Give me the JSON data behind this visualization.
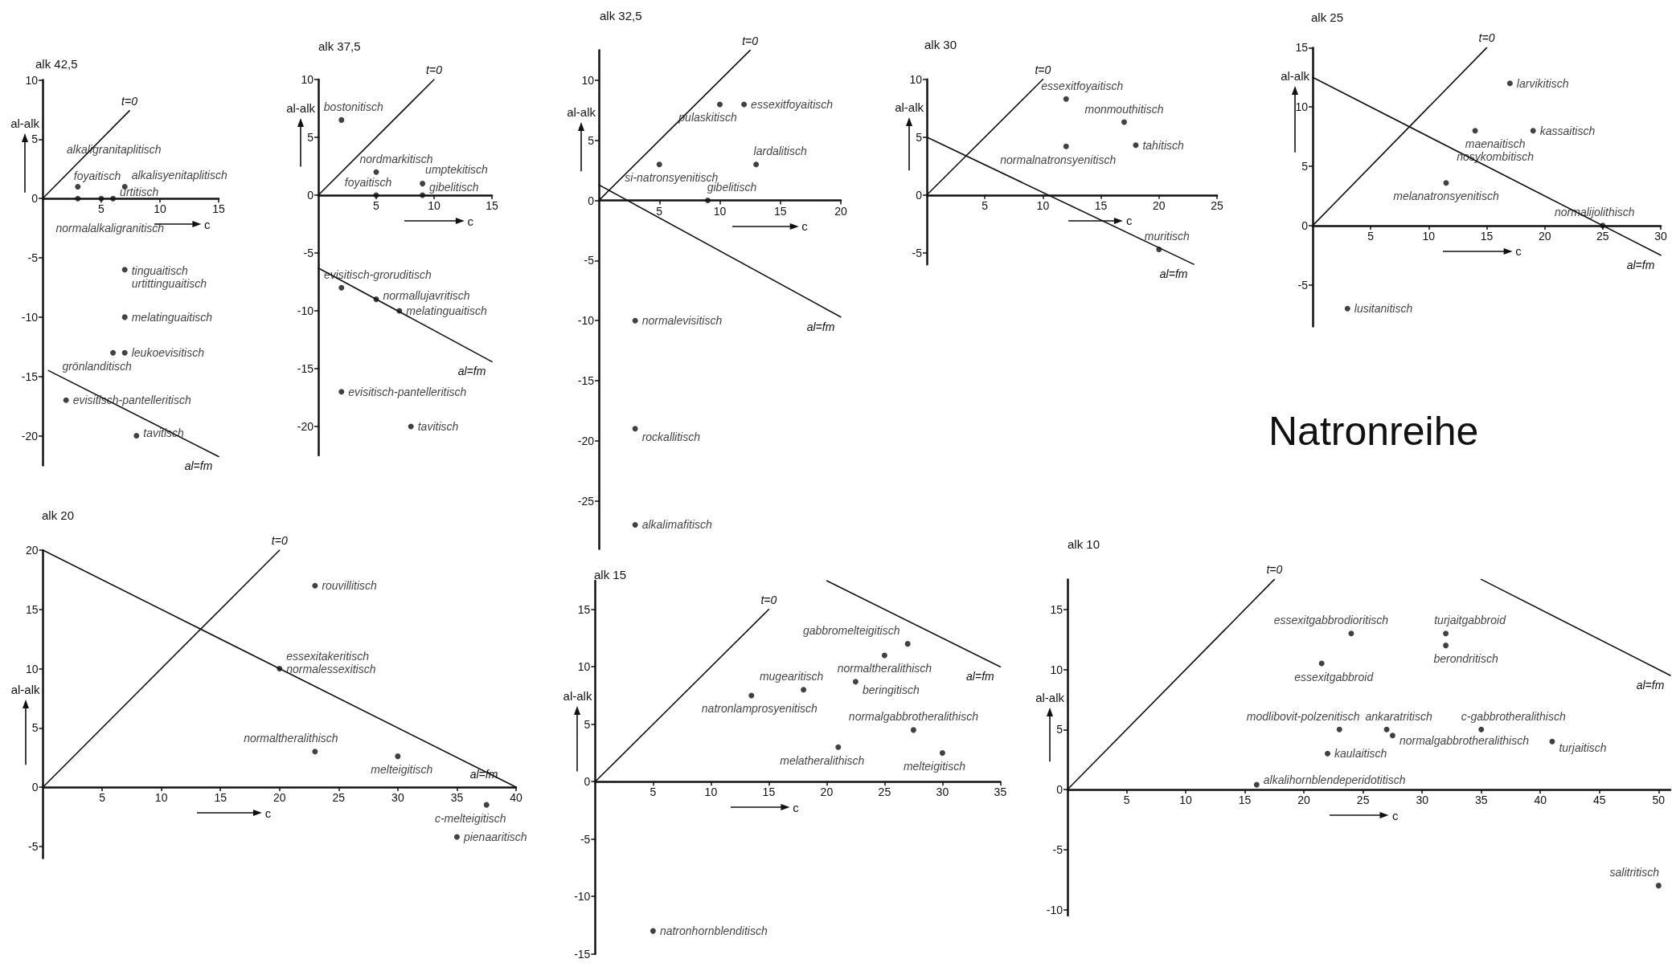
{
  "chart_data": [
    {
      "type": "scatter",
      "title": "alk 42,5",
      "xlabel": "c",
      "ylabel": "al-alk",
      "xlim": [
        0,
        15
      ],
      "ylim": [
        -22.5,
        10
      ],
      "xticks": [
        5,
        10,
        15
      ],
      "yticks": [
        -20,
        -15,
        -10,
        -5,
        0,
        5,
        10
      ],
      "marker": "circle",
      "series": [
        {
          "type": "scatter",
          "color": "#111111",
          "x": [
            3,
            3,
            5,
            6,
            7,
            7,
            7,
            7,
            6,
            2,
            8
          ],
          "values": [
            1,
            0,
            0,
            0,
            1,
            -6,
            -10,
            -13,
            -13,
            -17,
            -20
          ],
          "value_labels": [
            "alkaligranitaplitisch",
            "normalalkaligranitisch",
            "foyaitisch",
            "urtitisch",
            "alkalisyenitaplitisch",
            "tinguaitisch\nurtittinguaitisch",
            "melatinguaitisch",
            "leukoevisitisch",
            "grönlanditisch",
            "evisitisch-pantelleritisch",
            "tavitisch"
          ]
        },
        {
          "type": "line",
          "name": "t=0",
          "color": "#111111",
          "marker": "none",
          "x": [
            0,
            7.4
          ],
          "values": [
            0,
            7.4
          ]
        },
        {
          "type": "line",
          "name": "al=fm",
          "color": "#111111",
          "marker": "none",
          "x": [
            0.5,
            15
          ],
          "values": [
            -14.5,
            -21.75
          ]
        }
      ]
    },
    {
      "type": "scatter",
      "title": "alk 37,5",
      "xlabel": "c",
      "ylabel": "al-alk",
      "xlim": [
        0,
        15
      ],
      "ylim": [
        -22.5,
        10
      ],
      "xticks": [
        5,
        10,
        15
      ],
      "yticks": [
        -20,
        -15,
        -10,
        -5,
        0,
        5,
        10
      ],
      "marker": "circle",
      "series": [
        {
          "type": "scatter",
          "color": "#111111",
          "x": [
            2,
            5,
            5,
            9,
            9,
            2,
            5,
            7,
            2,
            8
          ],
          "values": [
            6.5,
            2,
            0,
            1,
            0,
            -8,
            -9,
            -10,
            -17,
            -20
          ],
          "value_labels": [
            "bostonitisch",
            "nordmarkitisch",
            "foyaitisch",
            "umptekitisch",
            "gibelitisch",
            "evisitisch-groruditisch",
            "normallujavritisch",
            "melatinguaitisch",
            "evisitisch-pantelleritisch",
            "tavitisch"
          ]
        },
        {
          "type": "line",
          "name": "t=0",
          "color": "#111111",
          "marker": "none",
          "x": [
            0,
            10
          ],
          "values": [
            0,
            10
          ]
        },
        {
          "type": "line",
          "name": "al=fm",
          "color": "#111111",
          "marker": "none",
          "x": [
            0,
            15
          ],
          "values": [
            -6.3,
            -14.4
          ]
        }
      ]
    },
    {
      "type": "scatter",
      "title": "alk 32,5",
      "xlabel": "c",
      "ylabel": "al-alk",
      "xlim": [
        0,
        20
      ],
      "ylim": [
        -29,
        12.5
      ],
      "xticks": [
        5,
        10,
        15,
        20
      ],
      "yticks": [
        -25,
        -20,
        -15,
        -10,
        -5,
        0,
        5,
        10
      ],
      "marker": "circle",
      "series": [
        {
          "type": "scatter",
          "color": "#111111",
          "x": [
            10,
            12,
            5,
            13,
            9,
            3,
            3,
            3
          ],
          "values": [
            8,
            8,
            3,
            3,
            0,
            -10,
            -19,
            -27
          ],
          "value_labels": [
            "pulaskitisch",
            "essexitfoyaitisch",
            "si-natronsyenitisch",
            "lardalitisch",
            "gibelitisch",
            "normalevisitisch",
            "rockallitisch",
            "alkalimafitisch"
          ]
        },
        {
          "type": "line",
          "name": "t=0",
          "color": "#111111",
          "marker": "none",
          "x": [
            0,
            12.5
          ],
          "values": [
            0,
            12.5
          ]
        },
        {
          "type": "line",
          "name": "al=fm",
          "color": "#111111",
          "marker": "none",
          "x": [
            0,
            20
          ],
          "values": [
            1.3,
            -9.7
          ]
        }
      ]
    },
    {
      "type": "scatter",
      "title": "alk 30",
      "xlabel": "c",
      "ylabel": "al-alk",
      "xlim": [
        0,
        25
      ],
      "ylim": [
        -6,
        10
      ],
      "xticks": [
        5,
        10,
        15,
        20,
        25
      ],
      "yticks": [
        -5,
        0,
        5,
        10
      ],
      "marker": "circle",
      "series": [
        {
          "type": "scatter",
          "color": "#111111",
          "x": [
            12,
            17,
            18,
            12,
            20
          ],
          "values": [
            8.3,
            6.3,
            4.3,
            4.2,
            -4.7
          ],
          "value_labels": [
            "essexitfoyaitisch",
            "monmouthitisch",
            "tahitisch",
            "normalnatronsyenitisch",
            "muritisch"
          ]
        },
        {
          "type": "line",
          "name": "t=0",
          "color": "#111111",
          "marker": "none",
          "x": [
            0,
            10
          ],
          "values": [
            0,
            10
          ]
        },
        {
          "type": "line",
          "name": "al=fm",
          "color": "#111111",
          "marker": "none",
          "x": [
            0,
            23
          ],
          "values": [
            5,
            -6
          ]
        }
      ]
    },
    {
      "type": "scatter",
      "title": "alk 25",
      "xlabel": "c",
      "ylabel": "al-alk",
      "xlim": [
        0,
        30
      ],
      "ylim": [
        -8.5,
        15
      ],
      "xticks": [
        5,
        10,
        15,
        20,
        25,
        30
      ],
      "yticks": [
        -5,
        0,
        5,
        10,
        15
      ],
      "marker": "circle",
      "annotations": [
        "Natronreihe"
      ],
      "series": [
        {
          "type": "scatter",
          "color": "#111111",
          "x": [
            17,
            14,
            19,
            11.5,
            25,
            3
          ],
          "values": [
            12,
            8,
            8,
            3.6,
            0,
            -7
          ],
          "value_labels": [
            "larvikitisch",
            "maenaitisch\nnosykombitisch",
            "kassaitisch",
            "melanatronsyenitisch",
            "normalijolithisch",
            "lusitanitisch"
          ]
        },
        {
          "type": "line",
          "name": "t=0",
          "color": "#111111",
          "marker": "none",
          "x": [
            0,
            15
          ],
          "values": [
            0,
            15
          ]
        },
        {
          "type": "line",
          "name": "al=fm",
          "color": "#111111",
          "marker": "none",
          "x": [
            0,
            30
          ],
          "values": [
            12.5,
            -2.5
          ]
        }
      ]
    },
    {
      "type": "scatter",
      "title": "alk 20",
      "xlabel": "c",
      "ylabel": "al-alk",
      "xlim": [
        0,
        40
      ],
      "ylim": [
        -6,
        20
      ],
      "xticks": [
        5,
        10,
        15,
        20,
        25,
        30,
        35,
        40
      ],
      "yticks": [
        -5,
        0,
        5,
        10,
        15,
        20
      ],
      "marker": "circle",
      "series": [
        {
          "type": "scatter",
          "color": "#111111",
          "x": [
            23,
            20,
            23,
            30,
            37.5,
            35
          ],
          "values": [
            17,
            10,
            3,
            2.6,
            -1.5,
            -4.2
          ],
          "value_labels": [
            "rouvillitisch",
            "essexitakeritisch\nnormalessexitisch",
            "normaltheralithisch",
            "melteigitisch",
            "c-melteigitisch",
            "pienaaritisch"
          ]
        },
        {
          "type": "line",
          "name": "t=0",
          "color": "#111111",
          "marker": "none",
          "x": [
            0,
            20
          ],
          "values": [
            0,
            20
          ]
        },
        {
          "type": "line",
          "name": "al=fm",
          "color": "#111111",
          "marker": "none",
          "x": [
            0,
            40
          ],
          "values": [
            20,
            0
          ]
        }
      ]
    },
    {
      "type": "scatter",
      "title": "alk 15",
      "xlabel": "c",
      "ylabel": "al-alk",
      "xlim": [
        0,
        35
      ],
      "ylim": [
        -15,
        17.5
      ],
      "xticks": [
        5,
        10,
        15,
        20,
        25,
        30,
        35
      ],
      "yticks": [
        -15,
        -10,
        -5,
        0,
        5,
        10,
        15
      ],
      "marker": "circle",
      "series": [
        {
          "type": "scatter",
          "color": "#111111",
          "x": [
            27,
            25,
            18,
            13.5,
            22.5,
            27.5,
            21,
            30,
            5
          ],
          "values": [
            12,
            11,
            8,
            7.5,
            8.7,
            4.5,
            3,
            2.5,
            -13
          ],
          "value_labels": [
            "gabbromelteigitisch",
            "normaltheralithisch",
            "mugearitisch",
            "natronlamprosyenitisch",
            "beringitisch",
            "normalgabbrotheralithisch",
            "melatheralithisch",
            "melteigitisch",
            "natronhornblenditisch"
          ]
        },
        {
          "type": "line",
          "name": "t=0",
          "color": "#111111",
          "marker": "none",
          "x": [
            0,
            15
          ],
          "values": [
            0,
            15
          ]
        },
        {
          "type": "line",
          "name": "al=fm",
          "color": "#111111",
          "marker": "none",
          "x": [
            20,
            35
          ],
          "values": [
            17.5,
            10
          ]
        }
      ]
    },
    {
      "type": "scatter",
      "title": "alk 10",
      "xlabel": "c",
      "ylabel": "al-alk",
      "xlim": [
        0,
        51
      ],
      "ylim": [
        -10.5,
        17.5
      ],
      "xticks": [
        5,
        10,
        15,
        20,
        25,
        30,
        35,
        40,
        45,
        50
      ],
      "yticks": [
        -10,
        -5,
        0,
        5,
        10,
        15
      ],
      "marker": "circle",
      "series": [
        {
          "type": "scatter",
          "color": "#111111",
          "x": [
            24,
            32,
            32,
            21.5,
            23,
            27,
            27.5,
            35,
            41,
            22,
            16,
            50
          ],
          "values": [
            13,
            13,
            12,
            10.5,
            5,
            5,
            4.5,
            5,
            4,
            3,
            0.4,
            -8
          ],
          "value_labels": [
            "essexitgabbrodioritisch",
            "turjaitgabbroid",
            "berondritisch",
            "essexitgabbroid",
            "modlibovit-polzenitisch",
            "ankaratritisch",
            "normalgabbrotheralithisch",
            "c-gabbrotheralithisch",
            "turjaitisch",
            "kaulaitisch",
            "alkalihornblendeperidotitisch",
            "salitritisch"
          ]
        },
        {
          "type": "line",
          "name": "t=0",
          "color": "#111111",
          "marker": "none",
          "x": [
            0,
            17.5
          ],
          "values": [
            0,
            17.5
          ]
        },
        {
          "type": "line",
          "name": "al=fm",
          "color": "#111111",
          "marker": "none",
          "x": [
            35,
            51
          ],
          "values": [
            17.5,
            9.5
          ]
        }
      ]
    }
  ]
}
